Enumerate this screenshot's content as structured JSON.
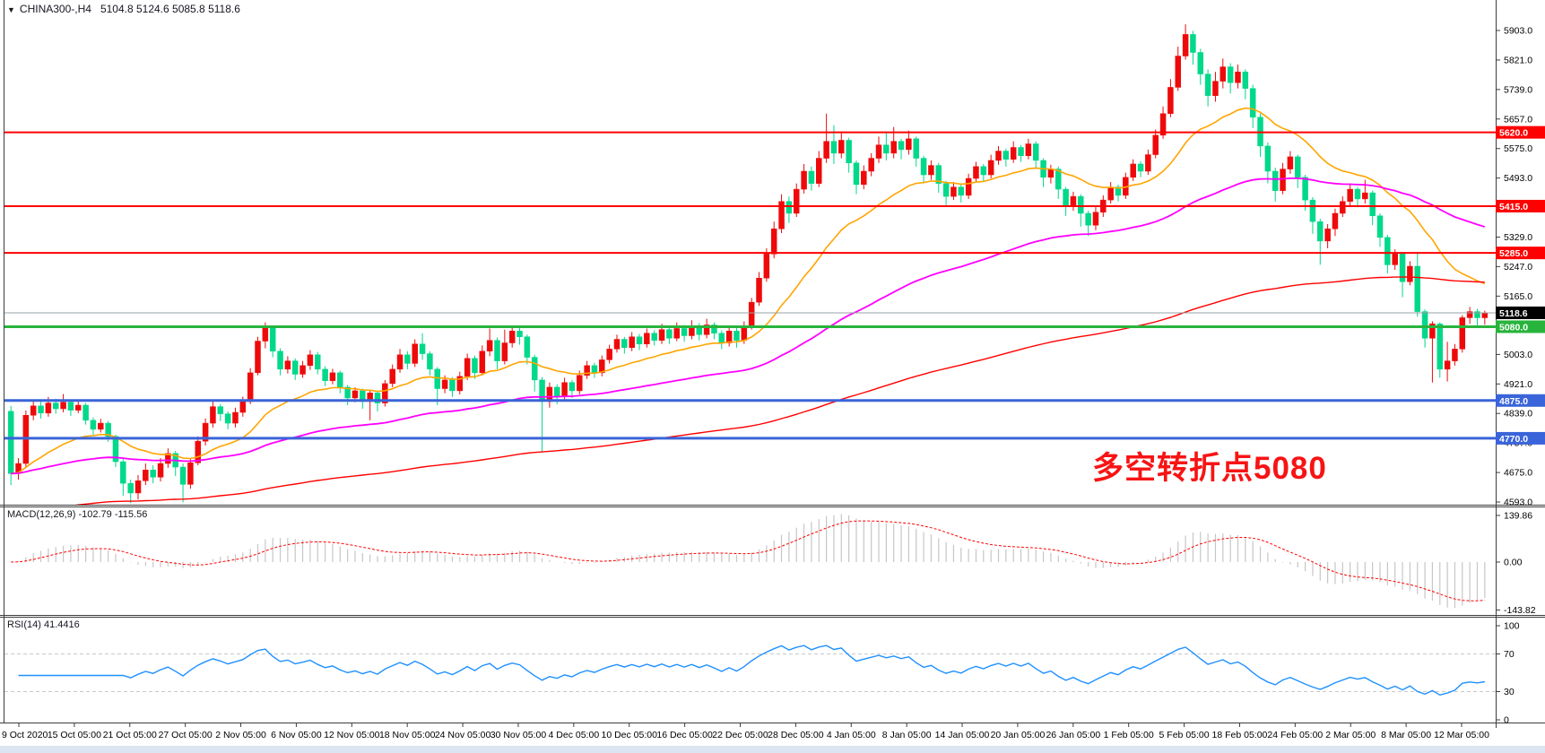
{
  "title": {
    "dropdown_icon": "▼",
    "symbol_period": "CHINA300-,H4",
    "ohlc_readout": "5104.8 5124.6 5085.8 5118.6"
  },
  "annotation": {
    "text": "多空转折点5080",
    "color": "#f71414"
  },
  "panes": {
    "macd": {
      "label": "MACD(12,26,9) -102.79 -115.56",
      "axis_labels": [
        "139.86",
        "0.00",
        "-143.82"
      ]
    },
    "rsi": {
      "label": "RSI(14) 41.4416",
      "axis_labels": [
        "100",
        "70",
        "30",
        "0"
      ]
    }
  },
  "price_axis": {
    "tick_labels": [
      5903.0,
      5821.0,
      5739.0,
      5657.0,
      5575.0,
      5493.0,
      5329.0,
      5247.0,
      5165.0,
      5003.0,
      4921.0,
      4839.0,
      4757.0,
      4675.0,
      4593.0
    ],
    "price_tags": [
      {
        "text": "5620.0",
        "price": 5620.0,
        "bg": "#fe0000"
      },
      {
        "text": "5415.0",
        "price": 5415.0,
        "bg": "#fe0000"
      },
      {
        "text": "5285.0",
        "price": 5285.0,
        "bg": "#fe0000"
      },
      {
        "text": "5118.6",
        "price": 5118.6,
        "bg": "#000000"
      },
      {
        "text": "5080.0",
        "price": 5080.0,
        "bg": "#28b43c"
      },
      {
        "text": "4875.0",
        "price": 4875.0,
        "bg": "#3a64d9"
      },
      {
        "text": "4770.0",
        "price": 4770.0,
        "bg": "#3a64d9"
      }
    ]
  },
  "time_axis": {
    "labels": [
      "9 Oct 2020",
      "15 Oct 05:00",
      "21 Oct 05:00",
      "27 Oct 05:00",
      "2 Nov 05:00",
      "6 Nov 05:00",
      "12 Nov 05:00",
      "18 Nov 05:00",
      "24 Nov 05:00",
      "30 Nov 05:00",
      "4 Dec 05:00",
      "10 Dec 05:00",
      "16 Dec 05:00",
      "22 Dec 05:00",
      "28 Dec 05:00",
      "4 Jan 05:00",
      "8 Jan 05:00",
      "14 Jan 05:00",
      "20 Jan 05:00",
      "26 Jan 05:00",
      "1 Feb 05:00",
      "5 Feb 05:00",
      "18 Feb 05:00",
      "24 Feb 05:00",
      "2 Mar 05:00",
      "8 Mar 05:00",
      "12 Mar 05:00"
    ]
  },
  "chart_data": {
    "type": "candlestick",
    "symbol": "CHINA300-",
    "timeframe": "H4",
    "title": "CHINA300-,H4",
    "ylim": [
      4593,
      5903
    ],
    "up_color": "#ee0a0a",
    "down_color": "#00d88a",
    "note_color_convention": "red = bullish, green = bearish (CN convention)",
    "last_candle": {
      "open": 5104.8,
      "high": 5124.6,
      "low": 5085.8,
      "close": 5118.6
    },
    "hlines": [
      {
        "price": 5620.0,
        "color": "#fe0000",
        "width": 2
      },
      {
        "price": 5415.0,
        "color": "#fe0000",
        "width": 2
      },
      {
        "price": 5285.0,
        "color": "#fe0000",
        "width": 2
      },
      {
        "price": 5080.0,
        "color": "#28b43c",
        "width": 3
      },
      {
        "price": 4875.0,
        "color": "#3a64d9",
        "width": 3
      },
      {
        "price": 4770.0,
        "color": "#3a64d9",
        "width": 3
      },
      {
        "price": 5118.6,
        "color": "#9aa0a6",
        "width": 1
      }
    ],
    "moving_averages": [
      {
        "name": "ma-fast",
        "color": "#ffa500",
        "period": 21,
        "stroke": 1.6
      },
      {
        "name": "ma-medium",
        "color": "#ff00ff",
        "period": 75,
        "stroke": 1.8
      },
      {
        "name": "ma-slow",
        "color": "#ff0000",
        "period": 200,
        "seed": 4560,
        "stroke": 1.4
      }
    ],
    "indicators": {
      "macd": {
        "fast": 12,
        "slow": 26,
        "signal": 9,
        "hist_color": "#c6c6c6",
        "signal_color": "#ff0000",
        "current_macd": -102.79,
        "current_signal": -115.56,
        "ylim": [
          -143.82,
          139.86
        ]
      },
      "rsi": {
        "period": 14,
        "color": "#1e90ff",
        "current": 41.4416,
        "levels": [
          70,
          30
        ],
        "ylim": [
          0,
          100
        ]
      }
    },
    "candles": [
      [
        4845,
        4860,
        4640,
        4672
      ],
      [
        4672,
        4715,
        4655,
        4700
      ],
      [
        4700,
        4847,
        4690,
        4834
      ],
      [
        4834,
        4875,
        4820,
        4860
      ],
      [
        4860,
        4872,
        4825,
        4840
      ],
      [
        4840,
        4885,
        4830,
        4868
      ],
      [
        4868,
        4880,
        4838,
        4852
      ],
      [
        4852,
        4893,
        4842,
        4870
      ],
      [
        4870,
        4878,
        4832,
        4848
      ],
      [
        4848,
        4874,
        4840,
        4862
      ],
      [
        4862,
        4868,
        4808,
        4820
      ],
      [
        4820,
        4828,
        4780,
        4795
      ],
      [
        4795,
        4824,
        4786,
        4812
      ],
      [
        4812,
        4818,
        4760,
        4775
      ],
      [
        4775,
        4780,
        4690,
        4705
      ],
      [
        4705,
        4712,
        4610,
        4645
      ],
      [
        4645,
        4655,
        4590,
        4618
      ],
      [
        4618,
        4668,
        4600,
        4652
      ],
      [
        4652,
        4700,
        4640,
        4682
      ],
      [
        4682,
        4695,
        4645,
        4662
      ],
      [
        4662,
        4715,
        4650,
        4700
      ],
      [
        4700,
        4742,
        4688,
        4728
      ],
      [
        4728,
        4735,
        4665,
        4690
      ],
      [
        4690,
        4700,
        4592,
        4642
      ],
      [
        4642,
        4712,
        4630,
        4702
      ],
      [
        4702,
        4775,
        4695,
        4762
      ],
      [
        4762,
        4825,
        4750,
        4812
      ],
      [
        4812,
        4872,
        4800,
        4858
      ],
      [
        4858,
        4865,
        4818,
        4838
      ],
      [
        4838,
        4845,
        4795,
        4812
      ],
      [
        4812,
        4855,
        4800,
        4842
      ],
      [
        4842,
        4886,
        4830,
        4872
      ],
      [
        4872,
        4965,
        4865,
        4952
      ],
      [
        4952,
        5052,
        4945,
        5040
      ],
      [
        5040,
        5092,
        5020,
        5076
      ],
      [
        5076,
        5082,
        4995,
        5012
      ],
      [
        5012,
        5020,
        4945,
        4962
      ],
      [
        4962,
        4998,
        4950,
        4985
      ],
      [
        4985,
        4992,
        4932,
        4948
      ],
      [
        4948,
        4985,
        4938,
        4972
      ],
      [
        4972,
        5015,
        4960,
        5002
      ],
      [
        5002,
        5010,
        4948,
        4962
      ],
      [
        4962,
        4970,
        4915,
        4930
      ],
      [
        4930,
        4963,
        4920,
        4952
      ],
      [
        4952,
        4958,
        4895,
        4912
      ],
      [
        4912,
        4918,
        4862,
        4882
      ],
      [
        4882,
        4912,
        4870,
        4902
      ],
      [
        4902,
        4908,
        4852,
        4872
      ],
      [
        4872,
        4905,
        4820,
        4896
      ],
      [
        4896,
        4902,
        4845,
        4868
      ],
      [
        4868,
        4932,
        4858,
        4922
      ],
      [
        4922,
        4975,
        4912,
        4962
      ],
      [
        4962,
        5018,
        4952,
        5002
      ],
      [
        5002,
        5012,
        4962,
        4978
      ],
      [
        4978,
        5045,
        4968,
        5032
      ],
      [
        5032,
        5062,
        4988,
        5005
      ],
      [
        5005,
        5012,
        4945,
        4962
      ],
      [
        4962,
        4968,
        4862,
        4908
      ],
      [
        4908,
        4945,
        4895,
        4932
      ],
      [
        4932,
        4940,
        4885,
        4902
      ],
      [
        4902,
        4955,
        4892,
        4942
      ],
      [
        4942,
        5005,
        4932,
        4992
      ],
      [
        4992,
        5000,
        4935,
        4952
      ],
      [
        4952,
        5028,
        4945,
        5012
      ],
      [
        5012,
        5075,
        4998,
        5042
      ],
      [
        5042,
        5050,
        4962,
        4985
      ],
      [
        4985,
        5072,
        4975,
        5035
      ],
      [
        5035,
        5080,
        5022,
        5068
      ],
      [
        5068,
        5076,
        5030,
        5052
      ],
      [
        5052,
        5058,
        4975,
        4995
      ],
      [
        4995,
        5002,
        4900,
        4932
      ],
      [
        4932,
        4940,
        4732,
        4872
      ],
      [
        4872,
        4925,
        4855,
        4912
      ],
      [
        4912,
        4920,
        4865,
        4888
      ],
      [
        4888,
        4938,
        4875,
        4925
      ],
      [
        4925,
        4932,
        4882,
        4902
      ],
      [
        4902,
        4958,
        4892,
        4945
      ],
      [
        4945,
        4985,
        4935,
        4972
      ],
      [
        4972,
        4980,
        4938,
        4952
      ],
      [
        4952,
        5000,
        4942,
        4988
      ],
      [
        4988,
        5030,
        4978,
        5018
      ],
      [
        5018,
        5058,
        5008,
        5045
      ],
      [
        5045,
        5052,
        5005,
        5022
      ],
      [
        5022,
        5065,
        5012,
        5052
      ],
      [
        5052,
        5060,
        5015,
        5032
      ],
      [
        5032,
        5075,
        5022,
        5062
      ],
      [
        5062,
        5070,
        5028,
        5042
      ],
      [
        5042,
        5088,
        5032,
        5072
      ],
      [
        5072,
        5080,
        5032,
        5048
      ],
      [
        5048,
        5092,
        5040,
        5075
      ],
      [
        5075,
        5085,
        5038,
        5055
      ],
      [
        5055,
        5098,
        5045,
        5082
      ],
      [
        5082,
        5090,
        5042,
        5058
      ],
      [
        5058,
        5102,
        5048,
        5085
      ],
      [
        5085,
        5092,
        5045,
        5062
      ],
      [
        5062,
        5070,
        5018,
        5035
      ],
      [
        5035,
        5082,
        5025,
        5068
      ],
      [
        5068,
        5078,
        5022,
        5042
      ],
      [
        5042,
        5095,
        5032,
        5082
      ],
      [
        5082,
        5160,
        5072,
        5148
      ],
      [
        5148,
        5232,
        5138,
        5215
      ],
      [
        5215,
        5298,
        5205,
        5282
      ],
      [
        5282,
        5372,
        5270,
        5352
      ],
      [
        5352,
        5448,
        5340,
        5428
      ],
      [
        5428,
        5442,
        5368,
        5395
      ],
      [
        5395,
        5478,
        5385,
        5462
      ],
      [
        5462,
        5532,
        5450,
        5512
      ],
      [
        5512,
        5525,
        5458,
        5478
      ],
      [
        5478,
        5568,
        5468,
        5548
      ],
      [
        5548,
        5672,
        5535,
        5595
      ],
      [
        5595,
        5640,
        5532,
        5562
      ],
      [
        5562,
        5622,
        5548,
        5598
      ],
      [
        5598,
        5605,
        5508,
        5535
      ],
      [
        5535,
        5542,
        5448,
        5475
      ],
      [
        5475,
        5528,
        5462,
        5512
      ],
      [
        5512,
        5562,
        5498,
        5548
      ],
      [
        5548,
        5608,
        5535,
        5585
      ],
      [
        5585,
        5618,
        5542,
        5562
      ],
      [
        5562,
        5635,
        5548,
        5595
      ],
      [
        5595,
        5602,
        5545,
        5572
      ],
      [
        5572,
        5625,
        5558,
        5602
      ],
      [
        5602,
        5608,
        5525,
        5548
      ],
      [
        5548,
        5555,
        5478,
        5502
      ],
      [
        5502,
        5542,
        5488,
        5528
      ],
      [
        5528,
        5535,
        5452,
        5478
      ],
      [
        5478,
        5485,
        5418,
        5442
      ],
      [
        5442,
        5482,
        5432,
        5468
      ],
      [
        5468,
        5478,
        5425,
        5445
      ],
      [
        5445,
        5505,
        5435,
        5492
      ],
      [
        5492,
        5538,
        5482,
        5525
      ],
      [
        5525,
        5532,
        5485,
        5502
      ],
      [
        5502,
        5558,
        5492,
        5542
      ],
      [
        5542,
        5582,
        5530,
        5568
      ],
      [
        5568,
        5575,
        5525,
        5545
      ],
      [
        5545,
        5595,
        5535,
        5578
      ],
      [
        5578,
        5585,
        5538,
        5555
      ],
      [
        5555,
        5602,
        5545,
        5588
      ],
      [
        5588,
        5595,
        5518,
        5542
      ],
      [
        5542,
        5548,
        5468,
        5495
      ],
      [
        5495,
        5530,
        5478,
        5518
      ],
      [
        5518,
        5525,
        5435,
        5462
      ],
      [
        5462,
        5468,
        5388,
        5415
      ],
      [
        5415,
        5455,
        5402,
        5442
      ],
      [
        5442,
        5448,
        5358,
        5395
      ],
      [
        5395,
        5402,
        5332,
        5362
      ],
      [
        5362,
        5412,
        5348,
        5398
      ],
      [
        5398,
        5445,
        5385,
        5432
      ],
      [
        5432,
        5482,
        5422,
        5468
      ],
      [
        5468,
        5475,
        5428,
        5445
      ],
      [
        5445,
        5508,
        5435,
        5495
      ],
      [
        5495,
        5545,
        5485,
        5532
      ],
      [
        5532,
        5540,
        5495,
        5512
      ],
      [
        5512,
        5572,
        5502,
        5558
      ],
      [
        5558,
        5628,
        5548,
        5612
      ],
      [
        5612,
        5692,
        5602,
        5672
      ],
      [
        5672,
        5768,
        5662,
        5745
      ],
      [
        5745,
        5858,
        5735,
        5832
      ],
      [
        5832,
        5920,
        5822,
        5892
      ],
      [
        5892,
        5902,
        5808,
        5842
      ],
      [
        5842,
        5852,
        5752,
        5782
      ],
      [
        5782,
        5795,
        5692,
        5722
      ],
      [
        5722,
        5788,
        5705,
        5762
      ],
      [
        5762,
        5825,
        5742,
        5802
      ],
      [
        5802,
        5812,
        5728,
        5758
      ],
      [
        5758,
        5808,
        5742,
        5788
      ],
      [
        5788,
        5795,
        5712,
        5742
      ],
      [
        5742,
        5752,
        5632,
        5662
      ],
      [
        5662,
        5672,
        5552,
        5582
      ],
      [
        5582,
        5592,
        5478,
        5512
      ],
      [
        5512,
        5522,
        5428,
        5458
      ],
      [
        5458,
        5535,
        5448,
        5518
      ],
      [
        5518,
        5568,
        5505,
        5552
      ],
      [
        5552,
        5558,
        5465,
        5495
      ],
      [
        5495,
        5502,
        5402,
        5432
      ],
      [
        5432,
        5440,
        5338,
        5372
      ],
      [
        5372,
        5380,
        5252,
        5318
      ],
      [
        5318,
        5365,
        5298,
        5352
      ],
      [
        5352,
        5408,
        5332,
        5395
      ],
      [
        5395,
        5442,
        5385,
        5428
      ],
      [
        5428,
        5478,
        5415,
        5462
      ],
      [
        5462,
        5468,
        5412,
        5435
      ],
      [
        5435,
        5488,
        5422,
        5452
      ],
      [
        5452,
        5458,
        5362,
        5388
      ],
      [
        5388,
        5395,
        5302,
        5328
      ],
      [
        5328,
        5335,
        5228,
        5252
      ],
      [
        5252,
        5295,
        5238,
        5282
      ],
      [
        5282,
        5288,
        5162,
        5205
      ],
      [
        5205,
        5262,
        5195,
        5248
      ],
      [
        5248,
        5288,
        5108,
        5122
      ],
      [
        5122,
        5128,
        5022,
        5048
      ],
      [
        5048,
        5095,
        4925,
        5088
      ],
      [
        5088,
        5092,
        4938,
        4962
      ],
      [
        4962,
        5038,
        4928,
        4985
      ],
      [
        4985,
        5032,
        4972,
        5018
      ],
      [
        5018,
        5112,
        5008,
        5105
      ],
      [
        5105,
        5135,
        5088,
        5122
      ],
      [
        5122,
        5130,
        5082,
        5104.8
      ],
      [
        5104.8,
        5124.6,
        5085.8,
        5118.6
      ]
    ]
  }
}
